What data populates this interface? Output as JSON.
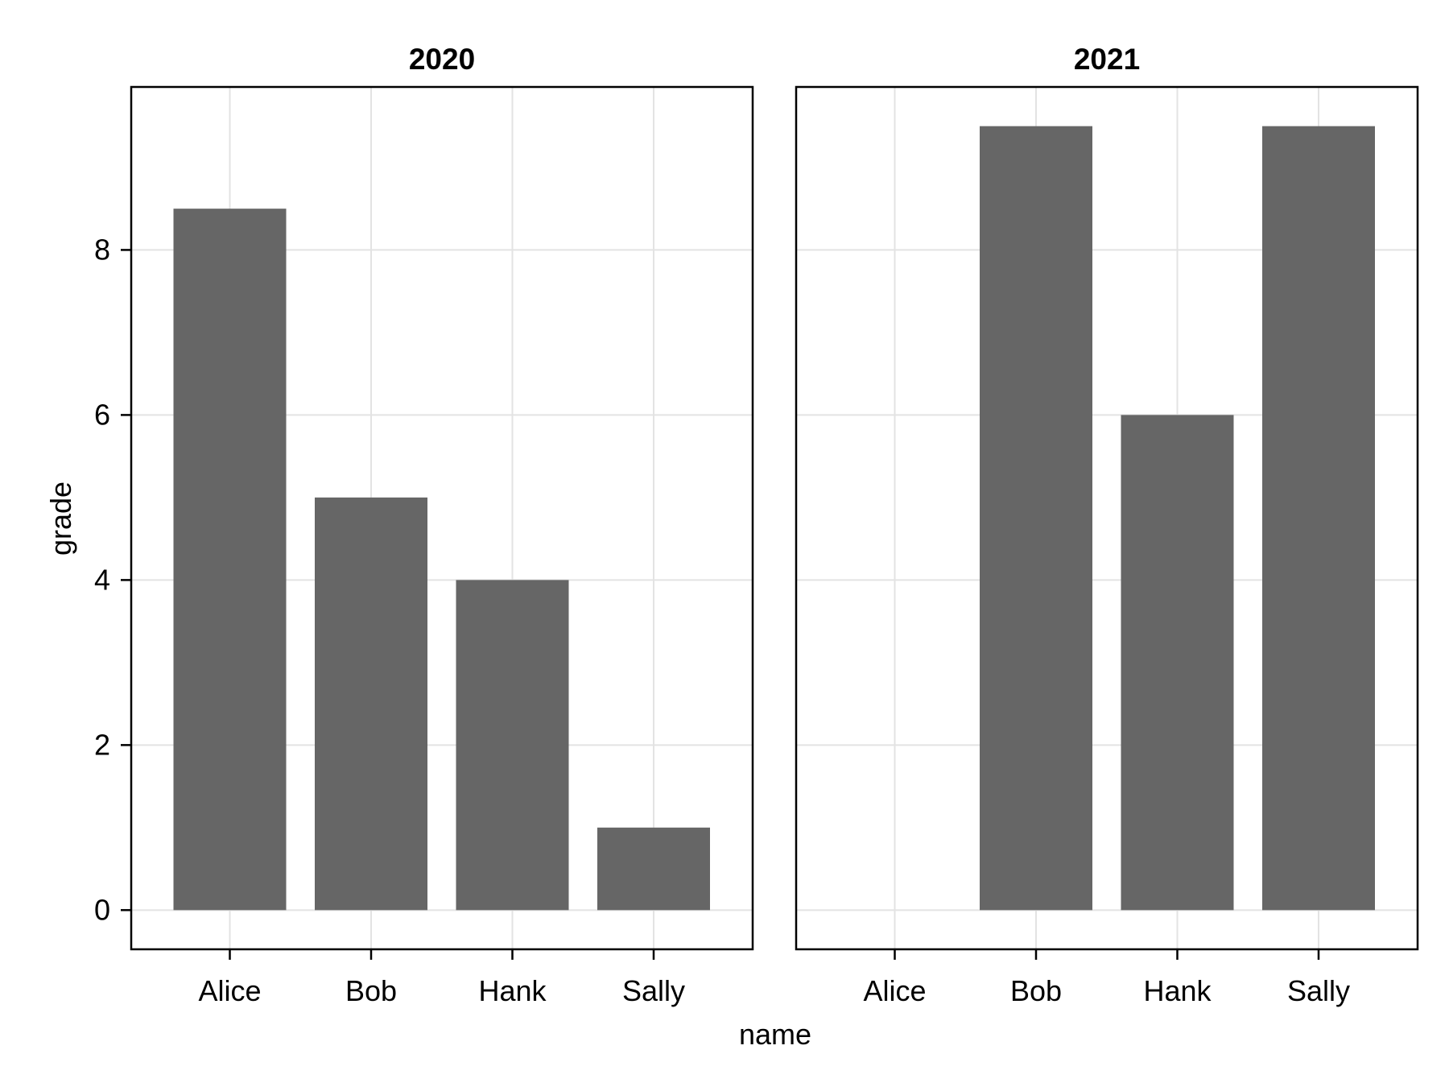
{
  "chart_data": {
    "type": "bar",
    "xlabel": "name",
    "ylabel": "grade",
    "categories": [
      "Alice",
      "Bob",
      "Hank",
      "Sally"
    ],
    "ylim": [
      -0.475,
      9.975
    ],
    "yticks": [
      0,
      2,
      4,
      6,
      8
    ],
    "grid": true,
    "bar_color": "#666666",
    "panels": [
      {
        "title": "2020",
        "values": [
          8.5,
          5,
          4,
          1
        ]
      },
      {
        "title": "2021",
        "values": [
          null,
          9.5,
          6,
          9.5
        ]
      }
    ]
  }
}
